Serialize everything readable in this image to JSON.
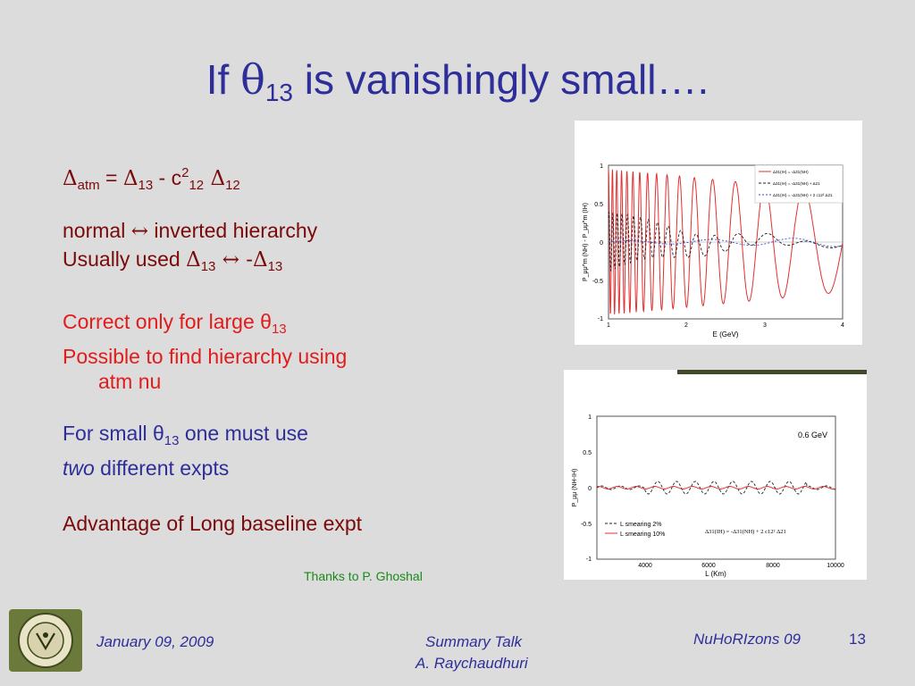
{
  "title": {
    "prefix": "If ",
    "theta": "θ",
    "sub": "13",
    "suffix": " is vanishingly small…."
  },
  "lines": {
    "delta_atm": {
      "d1": "Δ",
      "s1": "atm",
      "eq": " = ",
      "d2": "Δ",
      "s2": "13",
      "minus": " - c",
      "sup": "2",
      "s3": "12",
      "d3": " Δ",
      "s4": "12"
    },
    "normal": {
      "a": "normal ",
      "arrow": "↔",
      "b": " inverted hierarchy"
    },
    "usually": {
      "a": "Usually used  ",
      "d1": "Δ",
      "s1": "13",
      "arrow": " ↔ ",
      "neg": "-",
      "d2": "Δ",
      "s2": "13"
    },
    "correct": {
      "a": "Correct only for large θ",
      "s": "13"
    },
    "possible": {
      "a": "Possible to find hierarchy using",
      "b": "atm nu"
    },
    "forsmall": {
      "a": "For small θ",
      "s": "13",
      "b": " one must use"
    },
    "two": {
      "a": "two",
      "b": " different expts"
    },
    "advantage": "Advantage of Long baseline expt"
  },
  "thanks": "Thanks to P. Ghoshal",
  "footer": {
    "date": "January 09, 2009",
    "talk": "Summary Talk",
    "author": "A. Raychaudhuri",
    "conf": "NuHoRIzons 09",
    "page": "13"
  },
  "plot1": {
    "ylabel": "P_μμ^m (NH) - P_μμ^m (IH)",
    "xlabel": "E (GeV)",
    "xticks": [
      "1",
      "2",
      "3",
      "4"
    ],
    "yticks": [
      "1",
      "0.5",
      "0",
      "-0.5",
      "-1"
    ],
    "legend": [
      "Δ31(IH) = -Δ31(NH)",
      "Δ31(IH) = -Δ31(NH) + Δ21",
      "Δ31(IH) = -Δ31(NH) + 2 c12² Δ21"
    ],
    "colors": {
      "red": "#e23030",
      "black": "#222222",
      "blue": "#3b4fd8"
    }
  },
  "plot2": {
    "annotation": "0.6 GeV",
    "ylabel": "P_μμ (NH-IH)",
    "xlabel": "L (Km)",
    "xticks": [
      "4000",
      "6000",
      "8000",
      "10000"
    ],
    "yticks": [
      "1",
      "0.5",
      "0",
      "-0.5",
      "-1"
    ],
    "legend": [
      "L smearing 2%",
      "L smearing 10%"
    ],
    "formula": "Δ31(IH) = -Δ31(NH) + 2 c12² Δ21"
  }
}
